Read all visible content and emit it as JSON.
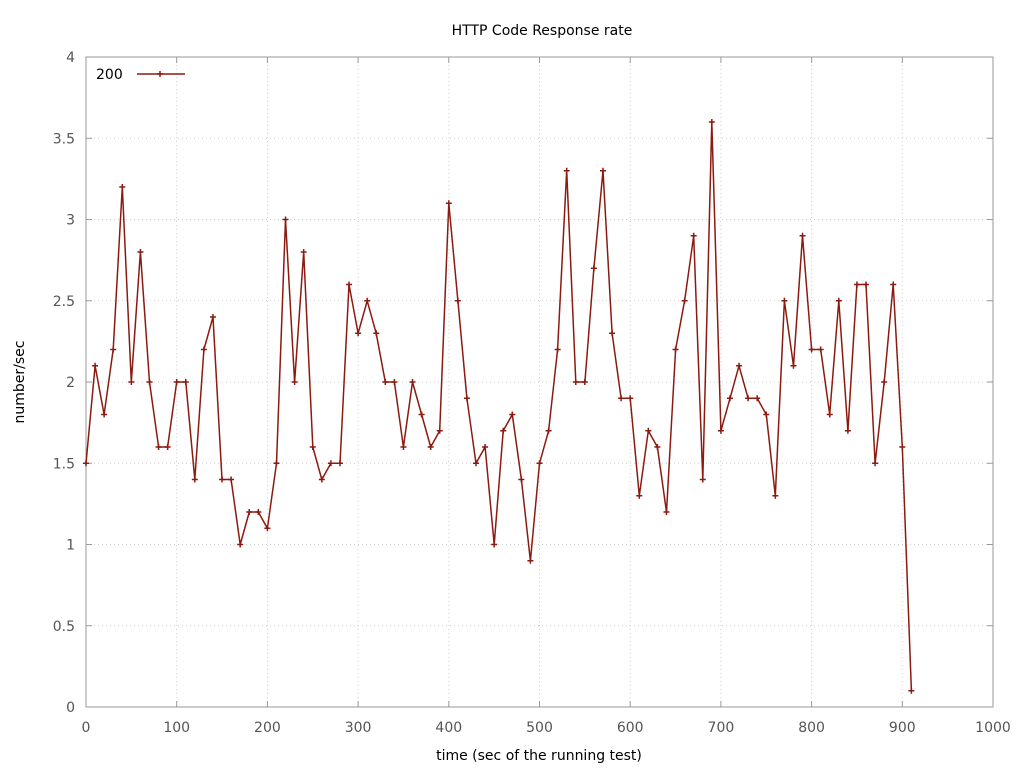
{
  "chart_data": {
    "type": "line",
    "title": "HTTP Code Response rate",
    "xlabel": "time (sec of the running test)",
    "ylabel": "number/sec",
    "xlim": [
      0,
      1000
    ],
    "ylim": [
      0,
      4
    ],
    "xticks": [
      0,
      100,
      200,
      300,
      400,
      500,
      600,
      700,
      800,
      900,
      1000
    ],
    "yticks": [
      0,
      0.5,
      1,
      1.5,
      2,
      2.5,
      3,
      3.5,
      4
    ],
    "xtick_labels": [
      "0",
      "100",
      "200",
      "300",
      "400",
      "500",
      "600",
      "700",
      "800",
      "900",
      "1000"
    ],
    "ytick_labels": [
      "0",
      "0.5",
      "1",
      "1.5",
      "2",
      "2.5",
      "3",
      "3.5",
      "4"
    ],
    "grid": true,
    "legend_position": "top-left",
    "series": [
      {
        "name": "200",
        "color": "#8b1a10",
        "marker": "plus",
        "x": [
          0,
          10,
          20,
          30,
          40,
          50,
          60,
          70,
          80,
          90,
          100,
          110,
          120,
          130,
          140,
          150,
          160,
          170,
          180,
          190,
          200,
          210,
          220,
          230,
          240,
          250,
          260,
          270,
          280,
          290,
          300,
          310,
          320,
          330,
          340,
          350,
          360,
          370,
          380,
          390,
          400,
          410,
          420,
          430,
          440,
          450,
          460,
          470,
          480,
          490,
          500,
          510,
          520,
          530,
          540,
          550,
          560,
          570,
          580,
          590,
          600,
          610,
          620,
          630,
          640,
          650,
          660,
          670,
          680,
          690,
          700,
          710,
          720,
          730,
          740,
          750,
          760,
          770,
          780,
          790,
          800,
          810,
          820,
          830,
          840,
          850,
          860,
          870,
          880,
          890,
          900,
          910
        ],
        "y": [
          1.5,
          2.1,
          1.8,
          2.2,
          3.2,
          2.0,
          2.8,
          2.0,
          1.6,
          1.6,
          2.0,
          2.0,
          1.4,
          2.2,
          2.4,
          1.4,
          1.4,
          1.0,
          1.2,
          1.2,
          1.1,
          1.5,
          3.0,
          2.0,
          2.8,
          1.6,
          1.4,
          1.5,
          1.5,
          2.6,
          2.3,
          2.5,
          2.3,
          2.0,
          2.0,
          1.6,
          2.0,
          1.8,
          1.6,
          1.7,
          3.1,
          2.5,
          1.9,
          1.5,
          1.6,
          1.0,
          1.7,
          1.8,
          1.4,
          0.9,
          1.5,
          1.7,
          2.2,
          3.3,
          2.0,
          2.0,
          2.7,
          3.3,
          2.3,
          1.9,
          1.9,
          1.3,
          1.7,
          1.6,
          1.2,
          2.2,
          2.5,
          2.9,
          1.4,
          3.6,
          1.7,
          1.9,
          2.1,
          1.9,
          1.9,
          1.8,
          1.3,
          2.5,
          2.1,
          2.9,
          2.2,
          2.2,
          1.8,
          2.5,
          1.7,
          2.6,
          2.6,
          1.5,
          2.0,
          2.6,
          1.6,
          0.1
        ]
      }
    ]
  }
}
